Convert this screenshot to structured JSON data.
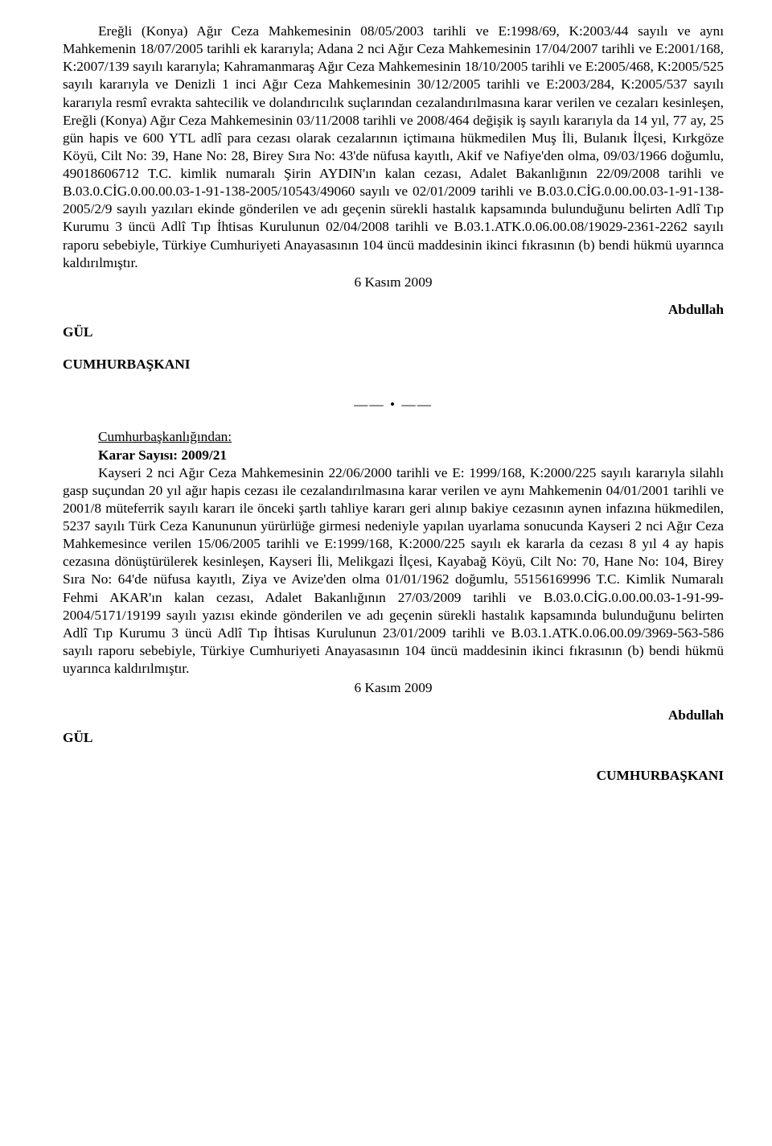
{
  "doc1": {
    "body": "Ereğli (Konya) Ağır Ceza Mahkemesinin 08/05/2003 tarihli ve E:1998/69, K:2003/44 sayılı ve aynı Mahkemenin 18/07/2005 tarihli ek kararıyla; Adana 2 nci Ağır Ceza Mahkemesinin 17/04/2007 tarihli ve E:2001/168, K:2007/139 sayılı kararıyla; Kahramanmaraş Ağır Ceza Mahkemesinin 18/10/2005 tarihli ve E:2005/468, K:2005/525 sayılı kararıyla ve Denizli 1 inci Ağır Ceza Mahkemesinin 30/12/2005 tarihli ve E:2003/284, K:2005/537 sayılı kararıyla resmî evrakta sahtecilik ve dolandırıcılık suçlarından cezalandırılmasına karar verilen ve cezaları kesinleşen, Ereğli (Konya) Ağır Ceza Mahkemesinin 03/11/2008 tarihli ve 2008/464 değişik iş sayılı kararıyla da 14 yıl, 77 ay, 25 gün hapis ve 600 YTL adlî para cezası olarak cezalarının içtimaına hükmedilen Muş İli, Bulanık İlçesi, Kırkgöze Köyü, Cilt No: 39, Hane No: 28, Birey Sıra No: 43'de nüfusa kayıtlı, Akif ve Nafiye'den olma, 09/03/1966 doğumlu, 49018606712 T.C. kimlik numaralı Şirin AYDIN'ın kalan cezası, Adalet Bakanlığının 22/09/2008 tarihli ve B.03.0.CİG.0.00.00.03-1-91-138-2005/10543/49060 sayılı ve 02/01/2009 tarihli ve B.03.0.CİG.0.00.00.03-1-91-138-2005/2/9 sayılı yazıları ekinde gönderilen ve adı geçenin sürekli hastalık kapsamında bulunduğunu belirten Adlî Tıp Kurumu 3 üncü Adlî Tıp İhtisas Kurulunun 02/04/2008 tarihli ve B.03.1.ATK.0.06.00.08/19029-2361-2262 sayılı raporu sebebiyle, Türkiye Cumhuriyeti Anayasasının 104 üncü maddesinin ikinci fıkrasının (b) bendi hükmü uyarınca kaldırılmıştır.",
    "date": "6 Kasım 2009",
    "sig_name": "Abdullah",
    "sig_name2": "GÜL",
    "sig_title": "CUMHURBAŞKANI"
  },
  "sep": "—— • ——",
  "doc2": {
    "from": "Cumhurbaşkanlığından:",
    "kararno": "Karar Sayısı: 2009/21",
    "body": "Kayseri 2 nci Ağır Ceza Mahkemesinin 22/06/2000 tarihli ve E: 1999/168, K:2000/225 sayılı kararıyla silahlı gasp suçundan 20 yıl ağır hapis cezası ile cezalandırılmasına karar verilen ve aynı Mahkemenin 04/01/2001 tarihli ve 2001/8 müteferrik sayılı kararı ile önceki şartlı tahliye kararı geri alınıp bakiye cezasının aynen infazına hükmedilen, 5237 sayılı Türk Ceza Kanununun yürürlüğe girmesi nedeniyle yapılan uyarlama sonucunda Kayseri 2 nci Ağır Ceza Mahkemesince verilen 15/06/2005 tarihli ve E:1999/168, K:2000/225 sayılı ek kararla da cezası 8 yıl 4 ay hapis cezasına dönüştürülerek kesinleşen, Kayseri İli, Melikgazi İlçesi, Kayabağ Köyü, Cilt No: 70, Hane No: 104, Birey Sıra No: 64'de nüfusa kayıtlı, Ziya ve Avize'den olma 01/01/1962 doğumlu, 55156169996 T.C. Kimlik Numaralı Fehmi AKAR'ın kalan cezası, Adalet Bakanlığının 27/03/2009 tarihli ve B.03.0.CİG.0.00.00.03-1-91-99-2004/5171/19199 sayılı yazısı ekinde gönderilen ve adı geçenin sürekli hastalık kapsamında bulunduğunu belirten Adlî Tıp Kurumu 3 üncü Adlî Tıp İhtisas Kurulunun 23/01/2009 tarihli ve B.03.1.ATK.0.06.00.09/3969-563-586 sayılı raporu sebebiyle, Türkiye Cumhuriyeti Anayasasının 104 üncü maddesinin ikinci fıkrasının (b) bendi hükmü uyarınca kaldırılmıştır.",
    "date": "6 Kasım 2009",
    "sig_name": "Abdullah",
    "sig_name2": "GÜL",
    "sig_title": "CUMHURBAŞKANI"
  }
}
